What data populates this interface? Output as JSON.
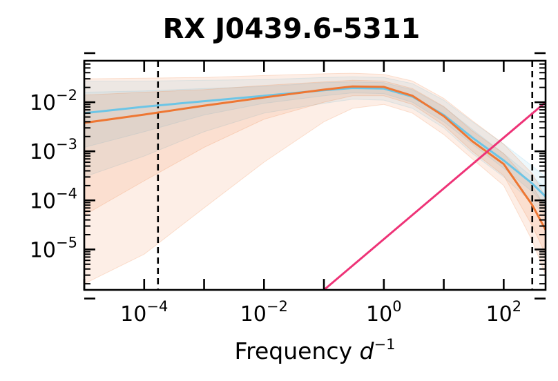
{
  "chart_data": {
    "type": "line",
    "title": "RX J0439.6-5311",
    "xlabel": "Frequency",
    "xlabel_math": {
      "base": "d",
      "sup": "−1"
    },
    "ylabel": "",
    "xscale": "log",
    "yscale": "log",
    "xlim": [
      1e-05,
      500
    ],
    "ylim": [
      1.5e-06,
      0.07
    ],
    "grid": false,
    "x_ticks": [
      {
        "value": 0.0001,
        "base": "10",
        "exp": "−4"
      },
      {
        "value": 0.01,
        "base": "10",
        "exp": "−2"
      },
      {
        "value": 1,
        "base": "10",
        "exp": "0"
      },
      {
        "value": 100,
        "base": "10",
        "exp": "2"
      }
    ],
    "y_ticks": [
      {
        "value": 1e-05,
        "base": "10",
        "exp": "−5"
      },
      {
        "value": 0.0001,
        "base": "10",
        "exp": "−4"
      },
      {
        "value": 0.001,
        "base": "10",
        "exp": "−3"
      },
      {
        "value": 0.01,
        "base": "10",
        "exp": "−2"
      }
    ],
    "vlines": [
      0.00017,
      300
    ],
    "series": [
      {
        "color": "#6cc5e6",
        "x": [
          1e-05,
          0.0001,
          0.001,
          0.01,
          0.1,
          0.3,
          1,
          3,
          10,
          30,
          100,
          300,
          500
        ],
        "y": [
          0.006,
          0.0081,
          0.0105,
          0.0135,
          0.0175,
          0.0195,
          0.019,
          0.013,
          0.0055,
          0.0019,
          0.00065,
          0.00022,
          0.00012
        ],
        "band_outer": {
          "upper": [
            0.027,
            0.027,
            0.028,
            0.029,
            0.032,
            0.033,
            0.032,
            0.024,
            0.011,
            0.004,
            0.0014,
            0.0005,
            0.0003
          ],
          "lower": [
            0.0003,
            0.0008,
            0.0025,
            0.006,
            0.0095,
            0.0115,
            0.011,
            0.0075,
            0.003,
            0.0009,
            0.0003,
            9e-05,
            5e-05
          ]
        },
        "band_inner": {
          "upper": [
            0.016,
            0.017,
            0.019,
            0.021,
            0.025,
            0.026,
            0.025,
            0.018,
            0.008,
            0.0028,
            0.0009,
            0.0003,
            0.00018
          ],
          "lower": [
            0.0012,
            0.0025,
            0.0055,
            0.0095,
            0.0135,
            0.0155,
            0.015,
            0.01,
            0.004,
            0.0014,
            0.00045,
            0.00015,
            8e-05
          ]
        }
      },
      {
        "color": "#ee7733",
        "x": [
          1e-05,
          0.0001,
          0.001,
          0.01,
          0.1,
          0.3,
          1,
          3,
          10,
          30,
          100,
          300,
          500
        ],
        "y": [
          0.0038,
          0.0056,
          0.0085,
          0.0125,
          0.018,
          0.021,
          0.0205,
          0.0135,
          0.0052,
          0.0016,
          0.00055,
          8e-05,
          2.5e-05
        ],
        "band_outer": {
          "upper": [
            0.03,
            0.031,
            0.032,
            0.035,
            0.038,
            0.039,
            0.037,
            0.027,
            0.012,
            0.0042,
            0.0014,
            0.00035,
            0.00012
          ],
          "lower": [
            2e-06,
            8e-06,
            7e-05,
            0.0006,
            0.004,
            0.0075,
            0.009,
            0.006,
            0.0022,
            0.0007,
            0.0002,
            1.5e-05,
            3e-06
          ]
        },
        "band_inner": {
          "upper": [
            0.014,
            0.016,
            0.018,
            0.022,
            0.026,
            0.028,
            0.027,
            0.019,
            0.0082,
            0.0026,
            0.0009,
            0.0002,
            7e-05
          ],
          "lower": [
            5e-05,
            0.00025,
            0.0012,
            0.0045,
            0.01,
            0.0135,
            0.0135,
            0.009,
            0.0034,
            0.001,
            0.00032,
            3e-05,
            8e-06
          ]
        }
      },
      {
        "color": "#ee3377",
        "x": [
          0.1,
          500
        ],
        "y": [
          1.5e-06,
          0.01
        ]
      }
    ]
  }
}
